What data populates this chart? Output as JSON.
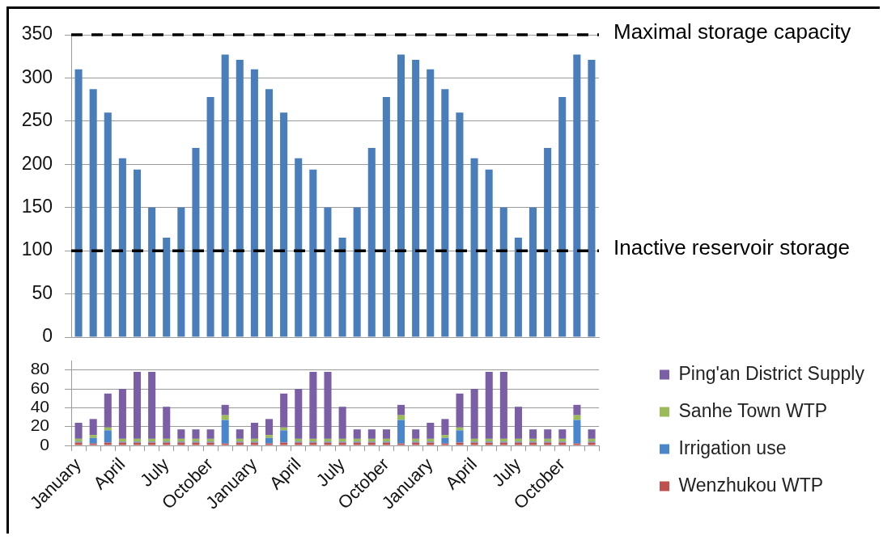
{
  "chart_data": [
    {
      "type": "bar",
      "categories": [
        null,
        null,
        null,
        null,
        null,
        null,
        null,
        null,
        null,
        null,
        null,
        null,
        null,
        null,
        null,
        null,
        null,
        null,
        null,
        null,
        null,
        null,
        null,
        null,
        null,
        null,
        null,
        null,
        null,
        null,
        null,
        null,
        null,
        null,
        null,
        null
      ],
      "values": [
        310,
        287,
        260,
        207,
        194,
        150,
        115,
        150,
        219,
        278,
        327,
        321,
        310,
        287,
        260,
        207,
        194,
        150,
        115,
        150,
        219,
        278,
        327,
        321,
        310,
        287,
        260,
        207,
        194,
        150,
        115,
        150,
        219,
        278,
        327,
        321
      ],
      "color": "#4a7ebb",
      "ylim": [
        0,
        350
      ],
      "yticks": [
        0,
        50,
        100,
        150,
        200,
        250,
        300,
        350
      ],
      "grid": "y",
      "tick_labels": "y",
      "ref_lines": [
        {
          "axis": "y",
          "value": 350,
          "label": "Maximal storage capacity",
          "color": "#000000",
          "line_style": "dashed"
        },
        {
          "axis": "y",
          "value": 100,
          "label": "Inactive reservoir storage",
          "color": "#000000",
          "line_style": "dashed"
        }
      ]
    },
    {
      "type": "bar",
      "stacked": true,
      "categories": [
        "January",
        null,
        null,
        "April",
        null,
        null,
        "July",
        null,
        null,
        "October",
        null,
        null,
        "January",
        null,
        null,
        "April",
        null,
        null,
        "July",
        null,
        null,
        "October",
        null,
        null,
        "January",
        null,
        null,
        "April",
        null,
        null,
        "July",
        null,
        null,
        "October",
        null,
        null
      ],
      "series": [
        {
          "name": "Wenzhukou WTP",
          "color": "#c0504d",
          "values": [
            3,
            2,
            3,
            3,
            3,
            3,
            3,
            3,
            3,
            3,
            2,
            3,
            3,
            2,
            3,
            3,
            3,
            3,
            3,
            3,
            3,
            3,
            2,
            3,
            3,
            2,
            3,
            3,
            3,
            3,
            3,
            3,
            3,
            3,
            2,
            3
          ]
        },
        {
          "name": "Irrigation use",
          "color": "#4a86cc",
          "values": [
            1,
            6,
            13,
            1,
            1,
            1,
            1,
            1,
            1,
            1,
            25,
            1,
            1,
            6,
            13,
            1,
            1,
            1,
            1,
            1,
            1,
            1,
            25,
            1,
            1,
            6,
            13,
            1,
            1,
            1,
            1,
            1,
            1,
            1,
            25,
            1
          ]
        },
        {
          "name": "Sanhe Town WTP",
          "color": "#9bbb59",
          "values": [
            3,
            3,
            3,
            3,
            3,
            3,
            3,
            3,
            3,
            3,
            5,
            3,
            3,
            3,
            3,
            3,
            3,
            3,
            3,
            3,
            3,
            3,
            5,
            3,
            3,
            3,
            3,
            3,
            3,
            3,
            3,
            3,
            3,
            3,
            5,
            3
          ]
        },
        {
          "name": "Ping'an District Supply",
          "color": "#7a5fa6",
          "values": [
            17,
            17,
            36,
            53,
            71,
            71,
            34,
            10,
            10,
            10,
            11,
            10,
            17,
            17,
            36,
            53,
            71,
            71,
            34,
            10,
            10,
            10,
            11,
            10,
            17,
            17,
            36,
            53,
            71,
            71,
            34,
            10,
            10,
            10,
            11,
            10
          ]
        }
      ],
      "ylim": [
        0,
        90
      ],
      "yticks": [
        0,
        20,
        40,
        60,
        80
      ],
      "grid": "y",
      "legend": "right"
    }
  ]
}
